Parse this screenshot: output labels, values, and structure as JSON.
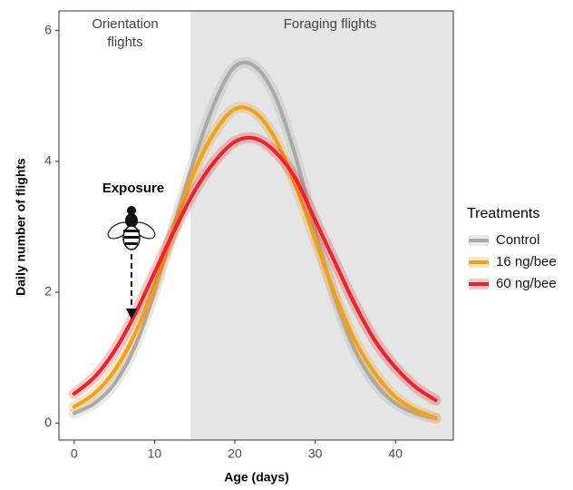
{
  "chart_data": {
    "type": "line",
    "x_label": "Age (days)",
    "y_label": "Daily number of flights",
    "annotations": {
      "orientation": [
        "Orientation",
        "flights"
      ],
      "foraging": "Foraging flights",
      "exposure": "Exposure"
    },
    "shade_xrange": [
      14.5,
      47.2
    ],
    "x": [
      0,
      2.5,
      5,
      7.5,
      10,
      12.5,
      15,
      17.5,
      20,
      22.5,
      25,
      27.5,
      30,
      32.5,
      35,
      37.5,
      40,
      42.5,
      45
    ],
    "series": [
      {
        "name": "Control",
        "color": "#a9a9a9",
        "values": [
          0.15,
          0.3,
          0.6,
          1.15,
          2.0,
          3.05,
          4.05,
          4.9,
          5.45,
          5.45,
          5.0,
          4.1,
          2.95,
          1.9,
          1.1,
          0.6,
          0.3,
          0.15,
          0.07
        ]
      },
      {
        "name": "16 ng/bee",
        "color": "#f0a01e",
        "values": [
          0.25,
          0.45,
          0.8,
          1.35,
          2.1,
          3.0,
          3.85,
          4.45,
          4.8,
          4.75,
          4.35,
          3.65,
          2.8,
          1.95,
          1.25,
          0.75,
          0.4,
          0.2,
          0.08
        ]
      },
      {
        "name": "60 ng/bee",
        "color": "#e8242a",
        "values": [
          0.45,
          0.7,
          1.1,
          1.65,
          2.3,
          2.95,
          3.55,
          4.0,
          4.3,
          4.35,
          4.15,
          3.75,
          3.1,
          2.45,
          1.8,
          1.25,
          0.85,
          0.55,
          0.35
        ]
      }
    ],
    "legend_title": "Treatments",
    "legend": "right",
    "xlim": [
      -1.9,
      47.2
    ],
    "ylim": [
      -0.26,
      6.3
    ],
    "xticks": [
      0,
      10,
      20,
      30,
      40
    ],
    "yticks": [
      0,
      2,
      4,
      6
    ],
    "grid": false
  }
}
